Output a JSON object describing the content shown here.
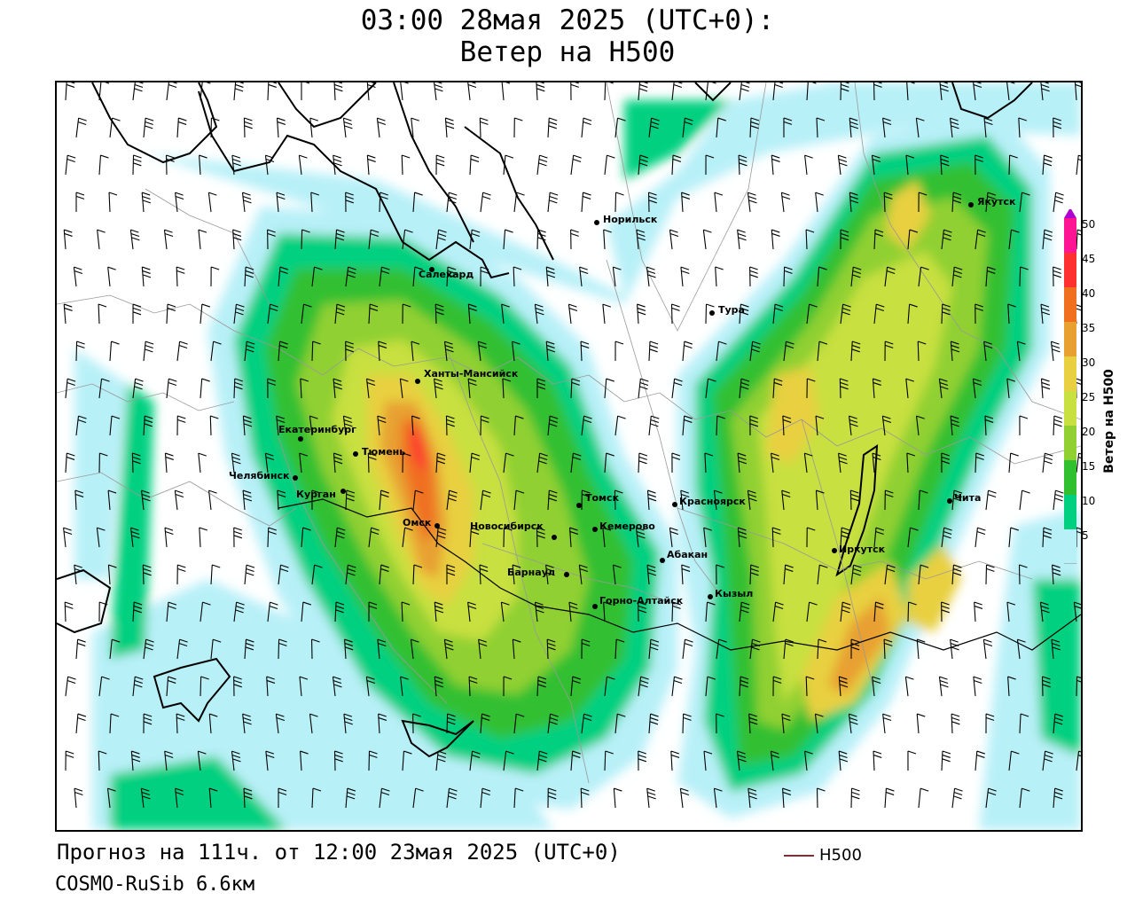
{
  "header": {
    "title_line1": "03:00 28мая 2025 (UTC+0):",
    "title_line2": "Ветер на H500"
  },
  "footer": {
    "forecast": "Прогноз на 111ч. от 12:00 23мая 2025 (UTC+0)",
    "model": "COSMO-RuSib 6.6км",
    "isoline_label": "H500"
  },
  "legend": {
    "title": "Ветер на H500",
    "ticks": [
      "50",
      "45",
      "40",
      "35",
      "30",
      "25",
      "20",
      "15",
      "10",
      "5"
    ],
    "colors": [
      "#b000d0",
      "#ff1493",
      "#ff3030",
      "#f07020",
      "#e8a030",
      "#e8d040",
      "#c8e040",
      "#90d030",
      "#30c030",
      "#00d080",
      "#b8f0f8"
    ],
    "isoline_color": "#7a3030"
  },
  "cities": [
    {
      "name": "Норильск"
    },
    {
      "name": "Салехард"
    },
    {
      "name": "Якутск"
    },
    {
      "name": "Тура"
    },
    {
      "name": "Ханты-Мансийск"
    },
    {
      "name": "Екатеринбург"
    },
    {
      "name": "Тюмень"
    },
    {
      "name": "Челябинск"
    },
    {
      "name": "Курган"
    },
    {
      "name": "Омск"
    },
    {
      "name": "Новосибирск"
    },
    {
      "name": "Томск"
    },
    {
      "name": "Кемерово"
    },
    {
      "name": "Барнаул"
    },
    {
      "name": "Красноярск"
    },
    {
      "name": "Абакан"
    },
    {
      "name": "Кызыл"
    },
    {
      "name": "Горно-Алтайск"
    },
    {
      "name": "Иркутск"
    },
    {
      "name": "Чита"
    }
  ]
}
